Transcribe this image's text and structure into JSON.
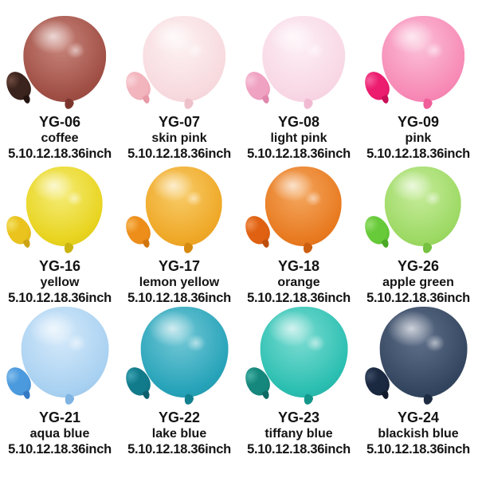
{
  "page": {
    "background": "#ffffff"
  },
  "products": [
    {
      "code": "YG-06",
      "name": "coffee",
      "sizes": "5.10.12.18.36inch",
      "colors": {
        "base": "#a04f45",
        "light": "#c8857b",
        "dark": "#7c352d",
        "small": "#3b241d",
        "small_light": "#6e4a3f",
        "small_dark": "#241310"
      }
    },
    {
      "code": "YG-07",
      "name": "skin pink",
      "sizes": "5.10.12.18.36inch",
      "colors": {
        "base": "#f7dade",
        "light": "#fdf1f2",
        "dark": "#eec0c9",
        "small": "#f2b4bd",
        "small_light": "#f9d5da",
        "small_dark": "#e89aa6"
      }
    },
    {
      "code": "YG-08",
      "name": "light pink",
      "sizes": "5.10.12.18.36inch",
      "colors": {
        "base": "#f8d7e5",
        "light": "#fdeff5",
        "dark": "#f1bad2",
        "small": "#f0a2c2",
        "small_light": "#f7c6da",
        "small_dark": "#e186ad"
      }
    },
    {
      "code": "YG-09",
      "name": "pink",
      "sizes": "5.10.12.18.36inch",
      "colors": {
        "base": "#f78ab6",
        "light": "#fbc0d8",
        "dark": "#ef5e99",
        "small": "#ec1d6f",
        "small_light": "#f55f9d",
        "small_dark": "#c90f58"
      }
    },
    {
      "code": "YG-16",
      "name": "yellow",
      "sizes": "5.10.12.18.36inch",
      "colors": {
        "base": "#e8d41f",
        "light": "#f5ec76",
        "dark": "#c9b411",
        "small": "#eac31e",
        "small_light": "#f3e066",
        "small_dark": "#cda313"
      }
    },
    {
      "code": "YG-17",
      "name": "lemon yellow",
      "sizes": "5.10.12.18.36inch",
      "colors": {
        "base": "#efa827",
        "light": "#f8cc68",
        "dark": "#d68a10",
        "small": "#ee8e1a",
        "small_light": "#f7b85c",
        "small_dark": "#d1750e"
      }
    },
    {
      "code": "YG-18",
      "name": "orange",
      "sizes": "5.10.12.18.36inch",
      "colors": {
        "base": "#e87a20",
        "light": "#f4a75f",
        "dark": "#cc5e0f",
        "small": "#e06112",
        "small_light": "#f09050",
        "small_dark": "#bf4e0b"
      }
    },
    {
      "code": "YG-26",
      "name": "apple green",
      "sizes": "5.10.12.18.36inch",
      "colors": {
        "base": "#9dd964",
        "light": "#c6ec9b",
        "dark": "#76c13f",
        "small": "#67ca39",
        "small_light": "#96de6f",
        "small_dark": "#4aa824"
      }
    },
    {
      "code": "YG-21",
      "name": "aqua blue",
      "sizes": "5.10.12.18.36inch",
      "colors": {
        "base": "#a9d1f1",
        "light": "#d4e9fa",
        "dark": "#7eb3e2",
        "small": "#4c9ade",
        "small_light": "#85bfeb",
        "small_dark": "#3379c4"
      }
    },
    {
      "code": "YG-22",
      "name": "lake blue",
      "sizes": "5.10.12.18.36inch",
      "colors": {
        "base": "#27a3b9",
        "light": "#73c8d6",
        "dark": "#12808f",
        "small": "#127b8b",
        "small_light": "#3da4b3",
        "small_dark": "#0d5f6d"
      }
    },
    {
      "code": "YG-23",
      "name": "tiffany blue",
      "sizes": "5.10.12.18.36inch",
      "colors": {
        "base": "#2bbfb1",
        "light": "#7cdcd2",
        "dark": "#13978a",
        "small": "#16877c",
        "small_light": "#45b0a6",
        "small_dark": "#0f6b62"
      }
    },
    {
      "code": "YG-24",
      "name": "blackish blue",
      "sizes": "5.10.12.18.36inch",
      "colors": {
        "base": "#344660",
        "light": "#61718b",
        "dark": "#1e2c42",
        "small": "#1a2840",
        "small_light": "#3d4c66",
        "small_dark": "#101a2c"
      }
    }
  ]
}
